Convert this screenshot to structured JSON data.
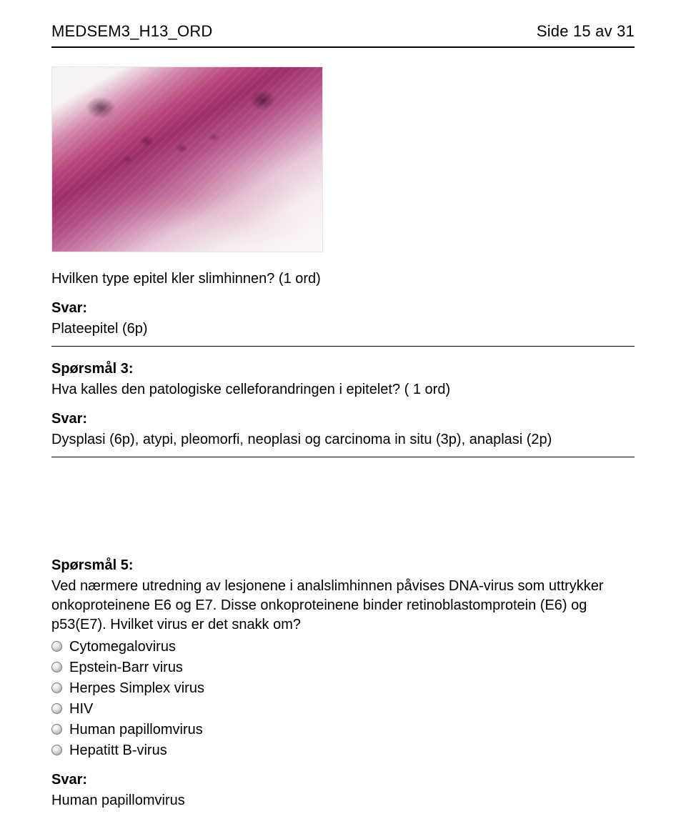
{
  "header": {
    "doc_code": "MEDSEM3_H13_ORD",
    "page_label": "Side 15 av 31"
  },
  "image": {
    "alt": "Histologisk snitt av slimhinne (H&E-farget plateepitel med dysplasi)",
    "dominant_colors": [
      "#9c2e6a",
      "#c97ea8",
      "#f5ecef",
      "#f4f4f4"
    ]
  },
  "blocks": [
    {
      "intro": "Hvilken type epitel kler slimhinnen? (1 ord)",
      "answer_label": "Svar:",
      "answer_text": "Plateepitel (6p)"
    },
    {
      "heading": "Spørsmål 3:",
      "question": "Hva kalles den patologiske celleforandringen i epitelet? ( 1 ord)",
      "answer_label": "Svar:",
      "answer_text": "Dysplasi (6p), atypi, pleomorfi, neoplasi og carcinoma in situ (3p), anaplasi (2p)"
    },
    {
      "heading": "Spørsmål 5:",
      "question": "Ved nærmere utredning av lesjonene i analslimhinnen påvises DNA-virus som uttrykker onkoproteinene E6 og E7. Disse onkoproteinene binder retinoblastomprotein (E6) og p53(E7). Hvilket virus er det snakk om?",
      "options": [
        "Cytomegalovirus",
        "Epstein-Barr virus",
        "Herpes Simplex virus",
        "HIV",
        "Human papillomvirus",
        "Hepatitt B-virus"
      ],
      "answer_label": "Svar:",
      "answer_text": "Human papillomvirus"
    }
  ]
}
